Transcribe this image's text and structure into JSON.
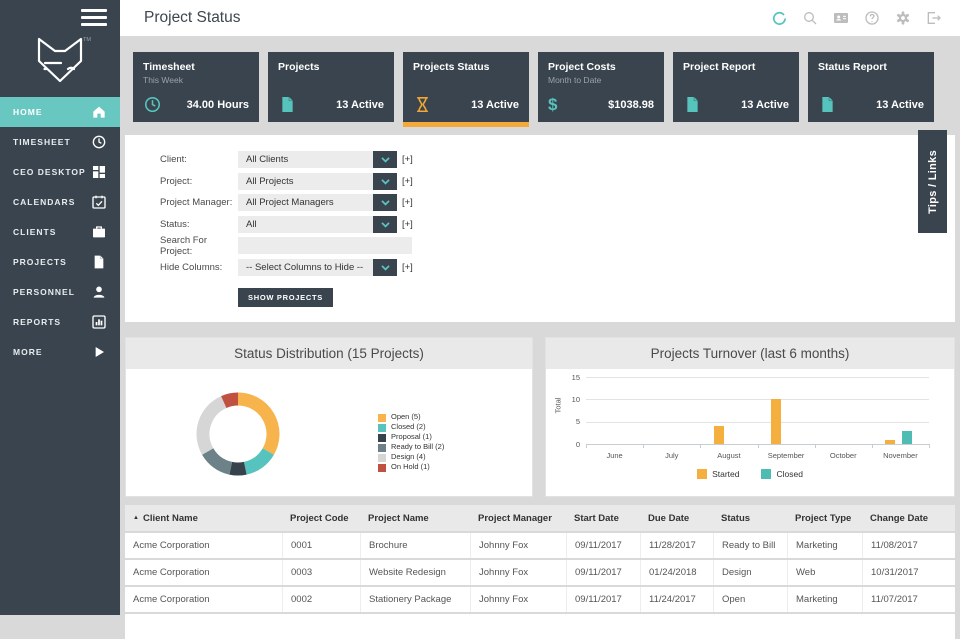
{
  "colors": {
    "dark": "#3A444E",
    "teal": "#5BC4BC",
    "sidebar_active_bg": "#68C7C0",
    "orange_accent": "#F5A93B",
    "page_bg": "#D9D9D9"
  },
  "sidebar": {
    "items": [
      {
        "label": "HOME",
        "icon": "home",
        "active": true
      },
      {
        "label": "TIMESHEET",
        "icon": "clock",
        "active": false
      },
      {
        "label": "CEO DESKTOP",
        "icon": "grid",
        "active": false
      },
      {
        "label": "CALENDARS",
        "icon": "calendar",
        "active": false
      },
      {
        "label": "CLIENTS",
        "icon": "briefcase",
        "active": false
      },
      {
        "label": "PROJECTS",
        "icon": "file",
        "active": false
      },
      {
        "label": "PERSONNEL",
        "icon": "person",
        "active": false
      },
      {
        "label": "REPORTS",
        "icon": "report",
        "active": false
      },
      {
        "label": "MORE",
        "icon": "play",
        "active": false
      }
    ],
    "logo_tm": "TM"
  },
  "header": {
    "title": "Project Status",
    "icons": [
      {
        "name": "refresh",
        "teal": true
      },
      {
        "name": "search",
        "teal": false
      },
      {
        "name": "contacts",
        "teal": false
      },
      {
        "name": "help",
        "teal": false
      },
      {
        "name": "settings",
        "teal": false
      },
      {
        "name": "signout",
        "teal": false
      }
    ]
  },
  "cards": [
    {
      "title": "Timesheet",
      "subtitle": "This Week",
      "icon": "clock",
      "icon_color": "#56C4BC",
      "value": "34.00 Hours",
      "active": false
    },
    {
      "title": "Projects",
      "subtitle": "",
      "icon": "file",
      "icon_color": "#56C4BC",
      "value": "13 Active",
      "active": false
    },
    {
      "title": "Projects Status",
      "subtitle": "",
      "icon": "hourglass",
      "icon_color": "#F0A733",
      "value": "13 Active",
      "active": true
    },
    {
      "title": "Project Costs",
      "subtitle": "Month to Date",
      "icon": "dollar",
      "icon_color": "#56C4BC",
      "value": "$1038.98",
      "active": false
    },
    {
      "title": "Project Report",
      "subtitle": "",
      "icon": "file",
      "icon_color": "#56C4BC",
      "value": "13 Active",
      "active": false
    },
    {
      "title": "Status Report",
      "subtitle": "",
      "icon": "file",
      "icon_color": "#56C4BC",
      "value": "13 Active",
      "active": false
    }
  ],
  "filters": {
    "rows": [
      {
        "label": "Client:",
        "value": "All Clients",
        "control": "select"
      },
      {
        "label": "Project:",
        "value": "All Projects",
        "control": "select"
      },
      {
        "label": "Project Manager:",
        "value": "All Project Managers",
        "control": "select"
      },
      {
        "label": "Status:",
        "value": "All",
        "control": "select"
      },
      {
        "label": "Search For Project:",
        "value": "",
        "control": "text"
      },
      {
        "label": "Hide Columns:",
        "value": "-- Select Columns to Hide --",
        "control": "select"
      }
    ],
    "expand_label": "[+]",
    "submit_label": "SHOW PROJECTS"
  },
  "tips_tab": {
    "label": "Tips / Links"
  },
  "chart_data": [
    {
      "type": "pie",
      "donut": true,
      "title": "Status Distribution (15 Projects)",
      "labels": [
        "Open (5)",
        "Closed (2)",
        "Proposal (1)",
        "Ready to Bill (2)",
        "Design (4)",
        "On Hold (1)"
      ],
      "values": [
        5,
        2,
        1,
        2,
        4,
        1
      ],
      "colors": [
        "#F7B44C",
        "#56C3BE",
        "#36424C",
        "#6C8288",
        "#D6D6D6",
        "#C0503F"
      ],
      "total": 15,
      "start_angle_deg": 0,
      "direction": "clockwise",
      "legend_position": "right"
    },
    {
      "type": "bar",
      "title": "Projects Turnover (last 6 months)",
      "categories": [
        "June",
        "July",
        "August",
        "September",
        "October",
        "November"
      ],
      "series": [
        {
          "name": "Started",
          "color": "#F5AF3F",
          "values": [
            0,
            0,
            4,
            10,
            0,
            1
          ]
        },
        {
          "name": "Closed",
          "color": "#4FBCB4",
          "values": [
            0,
            0,
            0,
            0,
            0,
            3
          ]
        }
      ],
      "xlabel": "",
      "ylabel": "Total",
      "yticks": [
        0,
        5,
        10,
        15
      ],
      "ylim": [
        0,
        15
      ],
      "grid": true,
      "legend_position": "bottom"
    }
  ],
  "table": {
    "sort_indicator": "▲",
    "sorted_column": "Client Name",
    "headers": [
      "Client Name",
      "Project Code",
      "Project Name",
      "Project Manager",
      "Start Date",
      "Due Date",
      "Status",
      "Project Type",
      "Change Date"
    ],
    "rows": [
      [
        "Acme Corporation",
        "0001",
        "Brochure",
        "Johnny Fox",
        "09/11/2017",
        "11/28/2017",
        "Ready to Bill",
        "Marketing",
        "11/08/2017"
      ],
      [
        "Acme Corporation",
        "0003",
        "Website Redesign",
        "Johnny Fox",
        "09/11/2017",
        "01/24/2018",
        "Design",
        "Web",
        "10/31/2017"
      ],
      [
        "Acme Corporation",
        "0002",
        "Stationery Package",
        "Johnny Fox",
        "09/11/2017",
        "11/24/2017",
        "Open",
        "Marketing",
        "11/07/2017"
      ]
    ]
  }
}
